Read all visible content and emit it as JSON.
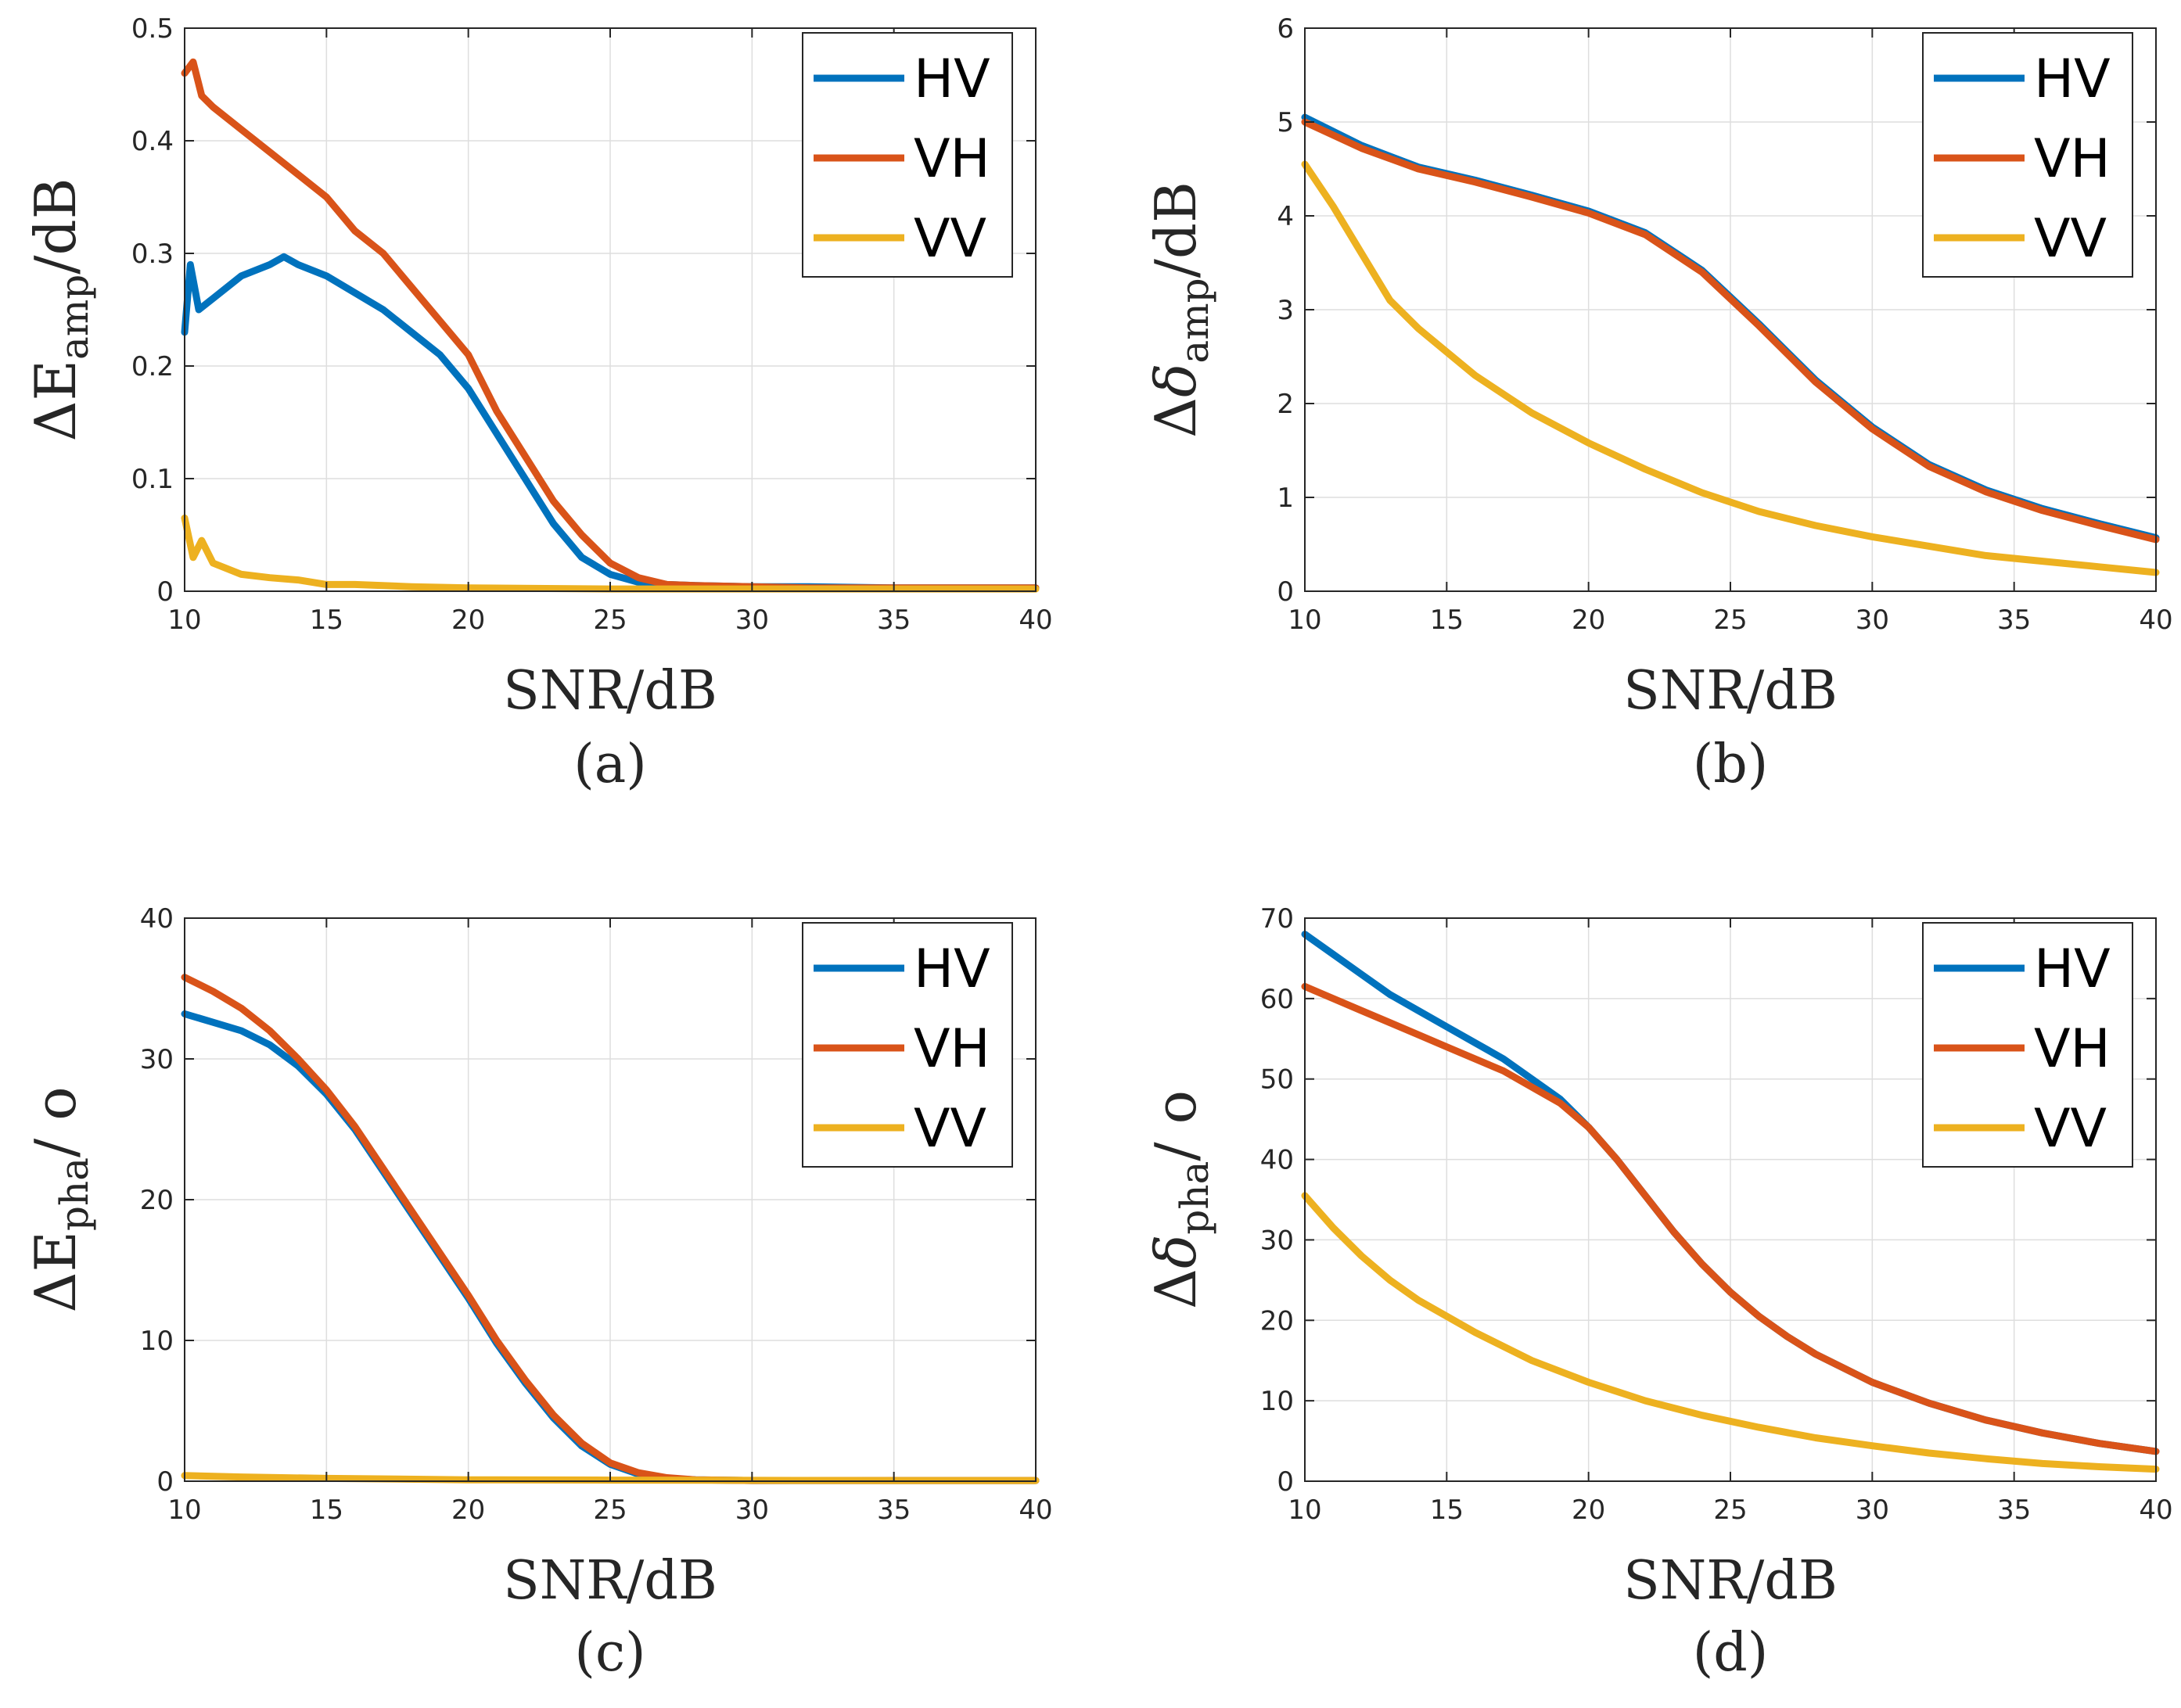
{
  "colors": {
    "HV": "#0072BD",
    "VH": "#D95319",
    "VV": "#EDB120",
    "grid": "#dedede",
    "axis": "#262626"
  },
  "chart_data": [
    {
      "id": "a",
      "type": "line",
      "caption": "(a)",
      "xlabel": "SNR/dB",
      "ylabel": {
        "prefix": "Δ",
        "main": "E",
        "main_italic": false,
        "sub": "amp",
        "suffix": "/dB"
      },
      "xlim": [
        10,
        40
      ],
      "ylim": [
        0,
        0.5
      ],
      "xticks": [
        "10",
        "15",
        "20",
        "25",
        "30",
        "35",
        "40"
      ],
      "yticks": [
        "0",
        "0.1",
        "0.2",
        "0.3",
        "0.4",
        "0.5"
      ],
      "legend": [
        "HV",
        "VH",
        "VV"
      ],
      "legend_location": "top-right",
      "series": [
        {
          "name": "HV",
          "x": [
            10,
            10.2,
            10.5,
            11,
            12,
            13,
            13.5,
            14,
            15,
            16,
            17,
            18,
            19,
            20,
            21,
            22,
            23,
            24,
            25,
            26,
            27,
            28,
            30,
            32,
            35,
            40
          ],
          "y": [
            0.23,
            0.29,
            0.25,
            0.26,
            0.28,
            0.29,
            0.297,
            0.29,
            0.28,
            0.265,
            0.25,
            0.23,
            0.21,
            0.18,
            0.14,
            0.1,
            0.06,
            0.03,
            0.015,
            0.008,
            0.006,
            0.005,
            0.004,
            0.004,
            0.003,
            0.003
          ]
        },
        {
          "name": "VH",
          "x": [
            10,
            10.3,
            10.6,
            11,
            12,
            13,
            14,
            15,
            16,
            17,
            18,
            19,
            20,
            21,
            22,
            23,
            24,
            25,
            26,
            27,
            28,
            30,
            32,
            35,
            40
          ],
          "y": [
            0.46,
            0.47,
            0.44,
            0.43,
            0.41,
            0.39,
            0.37,
            0.35,
            0.32,
            0.3,
            0.27,
            0.24,
            0.21,
            0.16,
            0.12,
            0.08,
            0.05,
            0.025,
            0.012,
            0.006,
            0.005,
            0.004,
            0.003,
            0.003,
            0.003
          ]
        },
        {
          "name": "VV",
          "x": [
            10,
            10.3,
            10.6,
            11,
            12,
            13,
            14,
            15,
            16,
            18,
            20,
            25,
            30,
            35,
            40
          ],
          "y": [
            0.065,
            0.03,
            0.045,
            0.025,
            0.015,
            0.012,
            0.01,
            0.006,
            0.006,
            0.004,
            0.003,
            0.002,
            0.002,
            0.002,
            0.002
          ]
        }
      ]
    },
    {
      "id": "b",
      "type": "line",
      "caption": "(b)",
      "xlabel": "SNR/dB",
      "ylabel": {
        "prefix": "Δ",
        "main": "δ",
        "main_italic": true,
        "sub": "amp",
        "suffix": "/dB"
      },
      "xlim": [
        10,
        40
      ],
      "ylim": [
        0,
        6
      ],
      "xticks": [
        "10",
        "15",
        "20",
        "25",
        "30",
        "35",
        "40"
      ],
      "yticks": [
        "0",
        "1",
        "2",
        "3",
        "4",
        "5",
        "6"
      ],
      "legend": [
        "HV",
        "VH",
        "VV"
      ],
      "legend_location": "top-right",
      "series": [
        {
          "name": "HV",
          "x": [
            10,
            12,
            14,
            16,
            18,
            20,
            22,
            24,
            26,
            28,
            30,
            32,
            34,
            36,
            38,
            40
          ],
          "y": [
            5.05,
            4.75,
            4.52,
            4.38,
            4.22,
            4.05,
            3.82,
            3.42,
            2.85,
            2.25,
            1.75,
            1.35,
            1.08,
            0.88,
            0.72,
            0.57
          ]
        },
        {
          "name": "VH",
          "x": [
            10,
            12,
            14,
            16,
            18,
            20,
            22,
            24,
            26,
            28,
            30,
            32,
            34,
            36,
            38,
            40
          ],
          "y": [
            5.0,
            4.72,
            4.5,
            4.36,
            4.2,
            4.03,
            3.8,
            3.4,
            2.83,
            2.23,
            1.73,
            1.33,
            1.06,
            0.86,
            0.7,
            0.55
          ]
        },
        {
          "name": "VV",
          "x": [
            10,
            11,
            12,
            13,
            14,
            15,
            16,
            18,
            20,
            22,
            24,
            26,
            28,
            30,
            32,
            34,
            36,
            38,
            40
          ],
          "y": [
            4.55,
            4.1,
            3.6,
            3.1,
            2.8,
            2.55,
            2.3,
            1.9,
            1.58,
            1.3,
            1.05,
            0.85,
            0.7,
            0.58,
            0.48,
            0.38,
            0.32,
            0.26,
            0.2
          ]
        }
      ]
    },
    {
      "id": "c",
      "type": "line",
      "caption": "(c)",
      "xlabel": "SNR/dB",
      "ylabel": {
        "prefix": "Δ",
        "main": "E",
        "main_italic": false,
        "sub": "pha",
        "suffix": "/ o"
      },
      "xlim": [
        10,
        40
      ],
      "ylim": [
        0,
        40
      ],
      "xticks": [
        "10",
        "15",
        "20",
        "25",
        "30",
        "35",
        "40"
      ],
      "yticks": [
        "0",
        "10",
        "20",
        "30",
        "40"
      ],
      "legend": [
        "HV",
        "VH",
        "VV"
      ],
      "legend_location": "top-right",
      "series": [
        {
          "name": "HV",
          "x": [
            10,
            11,
            12,
            13,
            14,
            15,
            16,
            17,
            18,
            19,
            20,
            21,
            22,
            23,
            24,
            25,
            26,
            27,
            28,
            30,
            35,
            40
          ],
          "y": [
            33.2,
            32.6,
            32.0,
            31.0,
            29.5,
            27.5,
            25.0,
            22.0,
            19.0,
            16.0,
            13.0,
            9.8,
            7.0,
            4.5,
            2.5,
            1.2,
            0.5,
            0.2,
            0.1,
            0.05,
            0.05,
            0.05
          ]
        },
        {
          "name": "VH",
          "x": [
            10,
            11,
            12,
            13,
            14,
            15,
            16,
            17,
            18,
            19,
            20,
            21,
            22,
            23,
            24,
            25,
            26,
            27,
            28,
            30,
            35,
            40
          ],
          "y": [
            35.8,
            34.8,
            33.6,
            32.0,
            30.0,
            27.8,
            25.2,
            22.2,
            19.2,
            16.2,
            13.2,
            10.0,
            7.2,
            4.7,
            2.7,
            1.3,
            0.6,
            0.25,
            0.1,
            0.05,
            0.05,
            0.05
          ]
        },
        {
          "name": "VV",
          "x": [
            10,
            12,
            15,
            20,
            25,
            30,
            35,
            40
          ],
          "y": [
            0.4,
            0.3,
            0.2,
            0.1,
            0.08,
            0.06,
            0.05,
            0.05
          ]
        }
      ]
    },
    {
      "id": "d",
      "type": "line",
      "caption": "(d)",
      "xlabel": "SNR/dB",
      "ylabel": {
        "prefix": "Δ",
        "main": "δ",
        "main_italic": true,
        "sub": "pha",
        "suffix": "/ o"
      },
      "xlim": [
        10,
        40
      ],
      "ylim": [
        0,
        70
      ],
      "xticks": [
        "10",
        "15",
        "20",
        "25",
        "30",
        "35",
        "40"
      ],
      "yticks": [
        "0",
        "10",
        "20",
        "30",
        "40",
        "50",
        "60",
        "70"
      ],
      "legend": [
        "HV",
        "VH",
        "VV"
      ],
      "legend_location": "top-right",
      "series": [
        {
          "name": "HV",
          "x": [
            10,
            11,
            12,
            13,
            14,
            15,
            16,
            17,
            18,
            19,
            20,
            21,
            22,
            23,
            24,
            25,
            26,
            27,
            28,
            30,
            32,
            34,
            36,
            38,
            40
          ],
          "y": [
            68,
            65.5,
            63,
            60.5,
            58.5,
            56.5,
            54.5,
            52.5,
            50,
            47.5,
            44,
            40,
            35.5,
            31,
            27,
            23.5,
            20.5,
            18,
            15.8,
            12.3,
            9.7,
            7.6,
            6.0,
            4.7,
            3.7
          ]
        },
        {
          "name": "VH",
          "x": [
            10,
            11,
            12,
            13,
            14,
            15,
            16,
            17,
            18,
            19,
            20,
            21,
            22,
            23,
            24,
            25,
            26,
            27,
            28,
            30,
            32,
            34,
            36,
            38,
            40
          ],
          "y": [
            61.5,
            60,
            58.5,
            57,
            55.5,
            54,
            52.5,
            51,
            49,
            47,
            44,
            40,
            35.5,
            31,
            27,
            23.5,
            20.5,
            18,
            15.8,
            12.3,
            9.7,
            7.6,
            6.0,
            4.7,
            3.7
          ]
        },
        {
          "name": "VV",
          "x": [
            10,
            11,
            12,
            13,
            14,
            15,
            16,
            18,
            20,
            22,
            24,
            26,
            28,
            30,
            32,
            34,
            36,
            38,
            40
          ],
          "y": [
            35.5,
            31.5,
            28,
            25,
            22.5,
            20.5,
            18.5,
            15,
            12.3,
            10,
            8.2,
            6.7,
            5.4,
            4.4,
            3.5,
            2.8,
            2.2,
            1.8,
            1.5
          ]
        }
      ]
    }
  ]
}
